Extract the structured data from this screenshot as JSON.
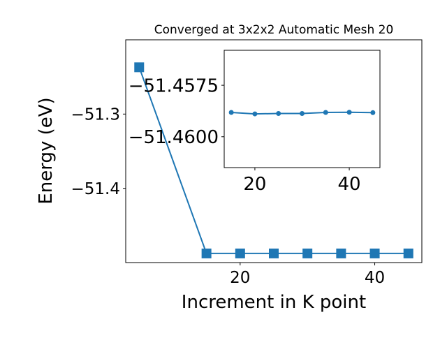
{
  "chart_data": [
    {
      "type": "line",
      "title": "Converged at 3x2x2 Automatic Mesh 20",
      "xlabel": "Increment in K point",
      "ylabel": "Energy (eV)",
      "x": [
        5,
        15,
        20,
        25,
        30,
        35,
        40,
        45
      ],
      "series": [
        {
          "values": [
            -51.237,
            -51.4877,
            -51.4877,
            -51.4877,
            -51.4877,
            -51.4877,
            -51.4877,
            -51.4877
          ]
        }
      ],
      "xlim": [
        3,
        47
      ],
      "ylim": [
        -51.5,
        -51.2
      ],
      "xticks": [
        20,
        40
      ],
      "xtick_labels": [
        "20",
        "40"
      ],
      "yticks": [
        -51.3,
        -51.4
      ],
      "ytick_labels": [
        "−51.3",
        "−51.4"
      ],
      "marker": "square",
      "color": "#1f77b4",
      "grid": false
    },
    {
      "type": "line",
      "title": "",
      "xlabel": "",
      "ylabel": "",
      "x": [
        15,
        20,
        25,
        30,
        35,
        40,
        45
      ],
      "series": [
        {
          "values": [
            -51.45882,
            -51.45889,
            -51.45887,
            -51.45887,
            -51.45882,
            -51.45881,
            -51.45883
          ]
        }
      ],
      "xlim": [
        13.5,
        46.5
      ],
      "ylim": [
        -51.4615,
        -51.4558
      ],
      "xticks": [
        20,
        40
      ],
      "xtick_labels": [
        "20",
        "40"
      ],
      "yticks": [
        -51.46,
        -51.4575
      ],
      "ytick_labels": [
        "−51.4600",
        "−51.4575"
      ],
      "marker": "circle",
      "color": "#1f77b4",
      "grid": false
    }
  ]
}
